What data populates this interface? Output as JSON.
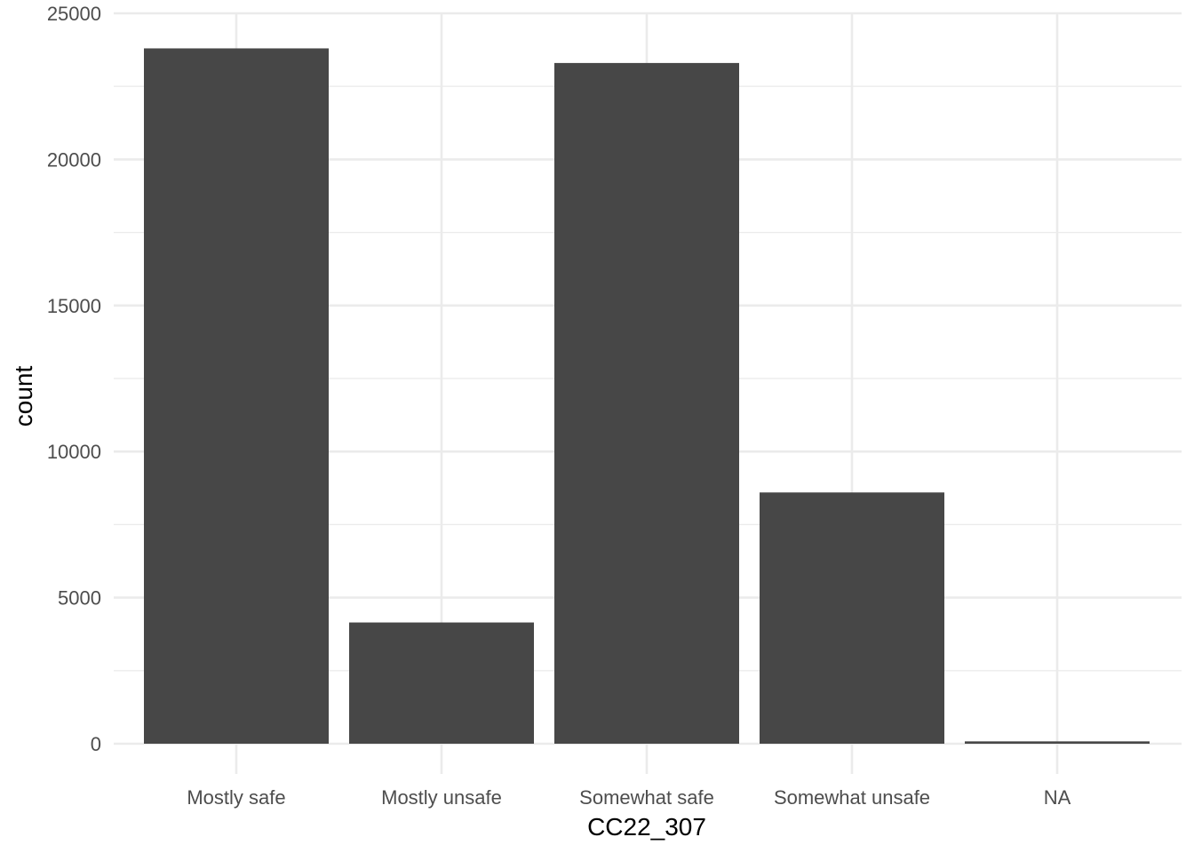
{
  "chart_data": {
    "type": "bar",
    "title": "",
    "xlabel": "CC22_307",
    "ylabel": "count",
    "categories": [
      "Mostly safe",
      "Mostly unsafe",
      "Somewhat safe",
      "Somewhat unsafe",
      "NA"
    ],
    "values": [
      23800,
      4150,
      23300,
      8600,
      80
    ],
    "ylim": [
      0,
      25000
    ],
    "yticks": [
      0,
      5000,
      10000,
      15000,
      20000,
      25000
    ],
    "ytick_labels": [
      "0",
      "5000",
      "10000",
      "15000",
      "20000",
      "25000"
    ],
    "grid": true,
    "legend": "none",
    "colors": {
      "bar": "#474747",
      "grid": "#ebebeb",
      "background": "#ffffff"
    }
  }
}
